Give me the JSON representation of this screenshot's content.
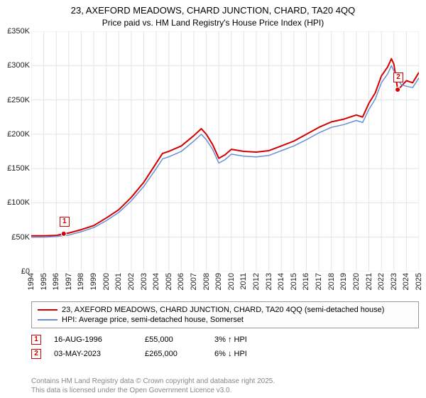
{
  "title_line1": "23, AXEFORD MEADOWS, CHARD JUNCTION, CHARD, TA20 4QQ",
  "title_line2": "Price paid vs. HM Land Registry's House Price Index (HPI)",
  "chart": {
    "type": "line",
    "background_color": "#ffffff",
    "grid_color": "#e4e4e4",
    "axis_font_size": 11,
    "title_font_size": 13,
    "ylim": [
      0,
      350000
    ],
    "ytick_step": 50000,
    "y_ticks": [
      "£0",
      "£50K",
      "£100K",
      "£150K",
      "£200K",
      "£250K",
      "£300K",
      "£350K"
    ],
    "xlim": [
      1994,
      2025
    ],
    "x_ticks": [
      1994,
      1995,
      1996,
      1997,
      1998,
      1999,
      2000,
      2001,
      2002,
      2003,
      2004,
      2005,
      2006,
      2007,
      2008,
      2009,
      2010,
      2011,
      2012,
      2013,
      2014,
      2015,
      2016,
      2017,
      2018,
      2019,
      2020,
      2021,
      2022,
      2023,
      2024,
      2025
    ],
    "series": [
      {
        "name": "price_paid",
        "label": "23, AXEFORD MEADOWS, CHARD JUNCTION, CHARD, TA20 4QQ (semi-detached house)",
        "color": "#d40000",
        "line_width": 2,
        "points": [
          [
            1994.0,
            52000
          ],
          [
            1995.0,
            52000
          ],
          [
            1996.0,
            52500
          ],
          [
            1996.6,
            55000
          ],
          [
            1997.0,
            56000
          ],
          [
            1998.0,
            61000
          ],
          [
            1999.0,
            67000
          ],
          [
            2000.0,
            78000
          ],
          [
            2001.0,
            90000
          ],
          [
            2002.0,
            108000
          ],
          [
            2003.0,
            130000
          ],
          [
            2004.0,
            158000
          ],
          [
            2004.5,
            172000
          ],
          [
            2005.0,
            175000
          ],
          [
            2006.0,
            183000
          ],
          [
            2007.0,
            198000
          ],
          [
            2007.6,
            208000
          ],
          [
            2008.0,
            200000
          ],
          [
            2008.5,
            185000
          ],
          [
            2009.0,
            165000
          ],
          [
            2009.5,
            170000
          ],
          [
            2010.0,
            178000
          ],
          [
            2011.0,
            175000
          ],
          [
            2012.0,
            174000
          ],
          [
            2013.0,
            176000
          ],
          [
            2014.0,
            183000
          ],
          [
            2015.0,
            190000
          ],
          [
            2016.0,
            200000
          ],
          [
            2017.0,
            210000
          ],
          [
            2018.0,
            218000
          ],
          [
            2019.0,
            222000
          ],
          [
            2020.0,
            228000
          ],
          [
            2020.5,
            225000
          ],
          [
            2021.0,
            245000
          ],
          [
            2021.5,
            260000
          ],
          [
            2022.0,
            285000
          ],
          [
            2022.5,
            298000
          ],
          [
            2022.8,
            310000
          ],
          [
            2023.0,
            302000
          ],
          [
            2023.3,
            265000
          ],
          [
            2023.6,
            270000
          ],
          [
            2024.0,
            278000
          ],
          [
            2024.5,
            275000
          ],
          [
            2025.0,
            290000
          ]
        ]
      },
      {
        "name": "hpi",
        "label": "HPI: Average price, semi-detached house, Somerset",
        "color": "#6a8fd4",
        "line_width": 1.5,
        "points": [
          [
            1994.0,
            50000
          ],
          [
            1995.0,
            50000
          ],
          [
            1996.0,
            51000
          ],
          [
            1997.0,
            53000
          ],
          [
            1998.0,
            58000
          ],
          [
            1999.0,
            64000
          ],
          [
            2000.0,
            74000
          ],
          [
            2001.0,
            86000
          ],
          [
            2002.0,
            103000
          ],
          [
            2003.0,
            124000
          ],
          [
            2004.0,
            150000
          ],
          [
            2004.5,
            164000
          ],
          [
            2005.0,
            167000
          ],
          [
            2006.0,
            175000
          ],
          [
            2007.0,
            190000
          ],
          [
            2007.6,
            200000
          ],
          [
            2008.0,
            192000
          ],
          [
            2008.5,
            178000
          ],
          [
            2009.0,
            158000
          ],
          [
            2009.5,
            163000
          ],
          [
            2010.0,
            171000
          ],
          [
            2011.0,
            168000
          ],
          [
            2012.0,
            167000
          ],
          [
            2013.0,
            169000
          ],
          [
            2014.0,
            176000
          ],
          [
            2015.0,
            183000
          ],
          [
            2016.0,
            192000
          ],
          [
            2017.0,
            202000
          ],
          [
            2018.0,
            210000
          ],
          [
            2019.0,
            214000
          ],
          [
            2020.0,
            220000
          ],
          [
            2020.5,
            217000
          ],
          [
            2021.0,
            236000
          ],
          [
            2021.5,
            251000
          ],
          [
            2022.0,
            275000
          ],
          [
            2022.5,
            288000
          ],
          [
            2022.8,
            300000
          ],
          [
            2023.0,
            292000
          ],
          [
            2023.3,
            280000
          ],
          [
            2023.6,
            272000
          ],
          [
            2024.0,
            270000
          ],
          [
            2024.5,
            268000
          ],
          [
            2025.0,
            282000
          ]
        ]
      }
    ],
    "markers": [
      {
        "id": "1",
        "x": 1996.6,
        "y": 55000
      },
      {
        "id": "2",
        "x": 2023.3,
        "y": 265000
      }
    ]
  },
  "legend": {
    "rows": [
      {
        "color": "#d40000",
        "label": "23, AXEFORD MEADOWS, CHARD JUNCTION, CHARD, TA20 4QQ (semi-detached house)"
      },
      {
        "color": "#6a8fd4",
        "label": "HPI: Average price, semi-detached house, Somerset"
      }
    ]
  },
  "transactions": [
    {
      "id": "1",
      "date": "16-AUG-1996",
      "price": "£55,000",
      "delta": "3% ↑ HPI"
    },
    {
      "id": "2",
      "date": "03-MAY-2023",
      "price": "£265,000",
      "delta": "6% ↓ HPI"
    }
  ],
  "footer_line1": "Contains HM Land Registry data © Crown copyright and database right 2025.",
  "footer_line2": "This data is licensed under the Open Government Licence v3.0."
}
